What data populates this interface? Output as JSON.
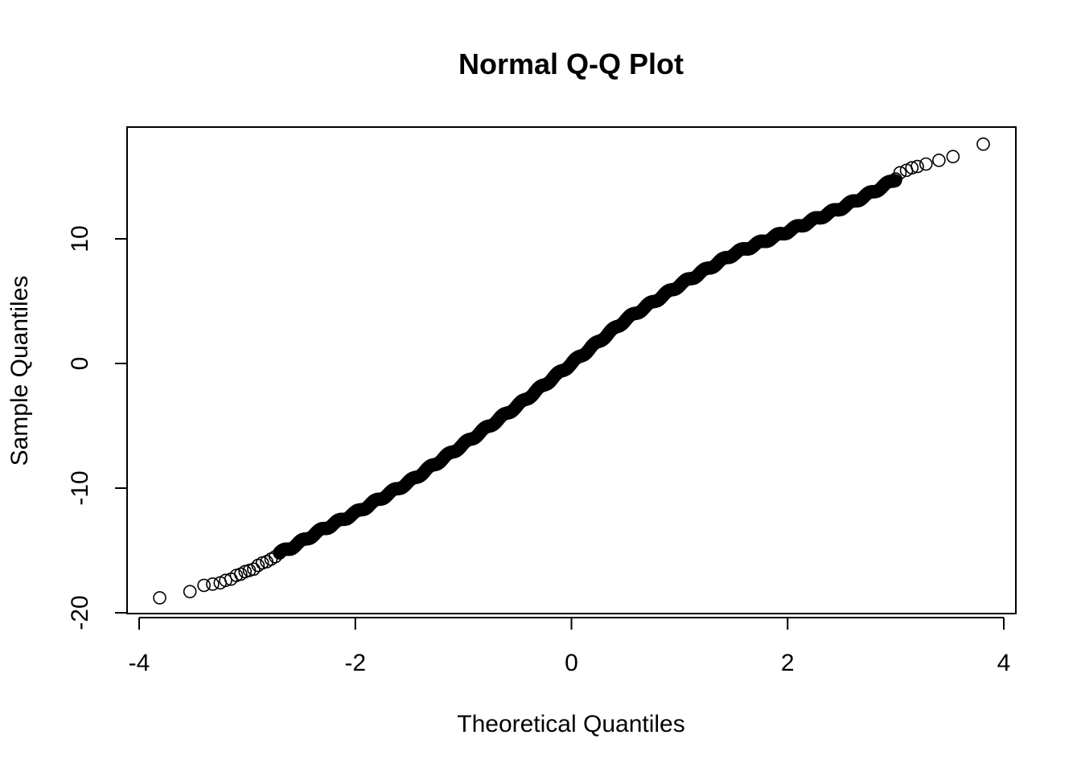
{
  "chart_data": {
    "type": "scatter",
    "title": "Normal Q-Q Plot",
    "xlabel": "Theoretical Quantiles",
    "ylabel": "Sample Quantiles",
    "xlim": [
      -4,
      4
    ],
    "ylim": [
      -20,
      20
    ],
    "x_ticks": [
      -4,
      -2,
      0,
      2,
      4
    ],
    "x_tick_labels": [
      "-4",
      "-2",
      "0",
      "2",
      "4"
    ],
    "y_ticks": [
      -20,
      -10,
      0,
      10
    ],
    "y_tick_labels": [
      "-20",
      "-10",
      "0",
      "10"
    ],
    "grid": false,
    "marker": "open-circle",
    "points": [
      [
        -3.81,
        -18.8
      ],
      [
        -3.53,
        -18.3
      ],
      [
        -3.4,
        -17.8
      ],
      [
        -3.32,
        -17.7
      ],
      [
        -3.25,
        -17.6
      ],
      [
        -3.2,
        -17.4
      ],
      [
        -3.15,
        -17.3
      ],
      [
        -3.1,
        -17.0
      ],
      [
        -3.06,
        -16.9
      ],
      [
        -3.02,
        -16.7
      ],
      [
        -2.98,
        -16.6
      ],
      [
        -2.94,
        -16.5
      ],
      [
        -2.9,
        -16.2
      ],
      [
        -2.86,
        -16.0
      ],
      [
        -2.82,
        -15.9
      ],
      [
        -2.78,
        -15.7
      ],
      [
        -2.74,
        -15.5
      ],
      [
        -2.7,
        -15.2
      ],
      [
        3.0,
        14.8
      ],
      [
        3.04,
        15.3
      ],
      [
        3.1,
        15.5
      ],
      [
        3.15,
        15.7
      ],
      [
        3.2,
        15.8
      ],
      [
        3.28,
        16.0
      ],
      [
        3.4,
        16.3
      ],
      [
        3.53,
        16.6
      ],
      [
        3.81,
        17.6
      ]
    ],
    "curve": [
      [
        -2.7,
        -15.2
      ],
      [
        -2.6,
        -14.8
      ],
      [
        -2.5,
        -14.3
      ],
      [
        -2.3,
        -13.3
      ],
      [
        -2.0,
        -12.0
      ],
      [
        -1.5,
        -9.5
      ],
      [
        -1.0,
        -6.5
      ],
      [
        -0.5,
        -3.4
      ],
      [
        0.0,
        0.0
      ],
      [
        0.5,
        3.5
      ],
      [
        1.0,
        6.3
      ],
      [
        1.5,
        8.8
      ],
      [
        2.0,
        10.6
      ],
      [
        2.5,
        12.5
      ],
      [
        2.8,
        13.8
      ],
      [
        3.0,
        14.8
      ]
    ]
  }
}
